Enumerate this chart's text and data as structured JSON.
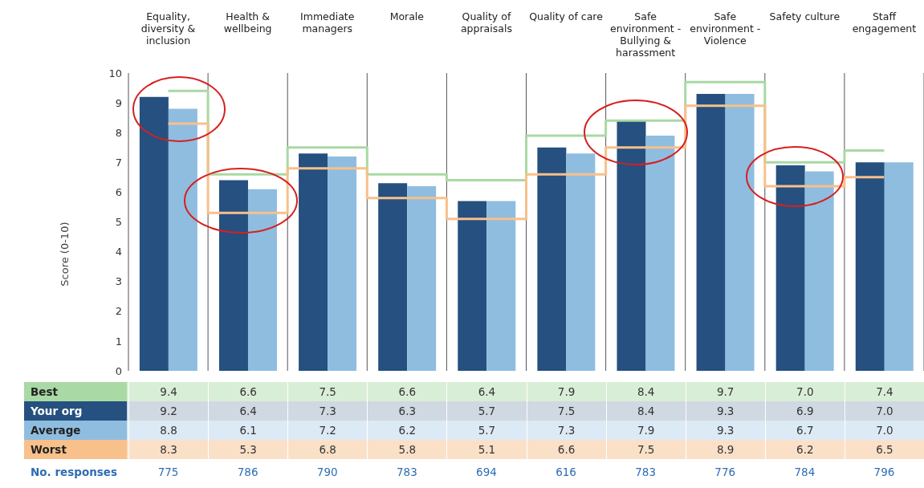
{
  "chart_data": {
    "type": "bar",
    "ylabel": "Score (0-10)",
    "categories": [
      "Equality, diversity & inclusion",
      "Health & wellbeing",
      "Immediate managers",
      "Morale",
      "Quality of appraisals",
      "Quality of care",
      "Safe environment - Bullying & harassment",
      "Safe environment - Violence",
      "Safety culture",
      "Staff engagement"
    ],
    "series": [
      {
        "name": "Best",
        "type": "step",
        "color": "#a9d9a4",
        "values": [
          9.4,
          6.6,
          7.5,
          6.6,
          6.4,
          7.9,
          8.4,
          9.7,
          7.0,
          7.4
        ],
        "value_labels": [
          "9.4",
          "6.6",
          "7.5",
          "6.6",
          "6.4",
          "7.9",
          "8.4",
          "9.7",
          "7.0",
          "7.4"
        ]
      },
      {
        "name": "Your org",
        "color": "#25507f",
        "values": [
          9.2,
          6.4,
          7.3,
          6.3,
          5.7,
          7.5,
          8.4,
          9.3,
          6.9,
          7.0
        ],
        "value_labels": [
          "9.2",
          "6.4",
          "7.3",
          "6.3",
          "5.7",
          "7.5",
          "8.4",
          "9.3",
          "6.9",
          "7.0"
        ]
      },
      {
        "name": "Average",
        "color": "#8fbde0",
        "values": [
          8.8,
          6.1,
          7.2,
          6.2,
          5.7,
          7.3,
          7.9,
          9.3,
          6.7,
          7.0
        ],
        "value_labels": [
          "8.8",
          "6.1",
          "7.2",
          "6.2",
          "5.7",
          "7.3",
          "7.9",
          "9.3",
          "6.7",
          "7.0"
        ]
      },
      {
        "name": "Worst",
        "type": "step",
        "color": "#f8c08a",
        "values": [
          8.3,
          5.3,
          6.8,
          5.8,
          5.1,
          6.6,
          7.5,
          8.9,
          6.2,
          6.5
        ],
        "value_labels": [
          "8.3",
          "5.3",
          "6.8",
          "5.8",
          "5.1",
          "6.6",
          "7.5",
          "8.9",
          "6.2",
          "6.5"
        ]
      }
    ],
    "ylim": [
      0,
      10
    ],
    "yticks": [
      0,
      1,
      2,
      3,
      4,
      5,
      6,
      7,
      8,
      9,
      10
    ],
    "grid": "x",
    "legend": "bottom",
    "annotations": [
      "No. responses",
      "775",
      "786",
      "790",
      "783",
      "694",
      "616",
      "783",
      "776",
      "784",
      "796"
    ]
  }
}
